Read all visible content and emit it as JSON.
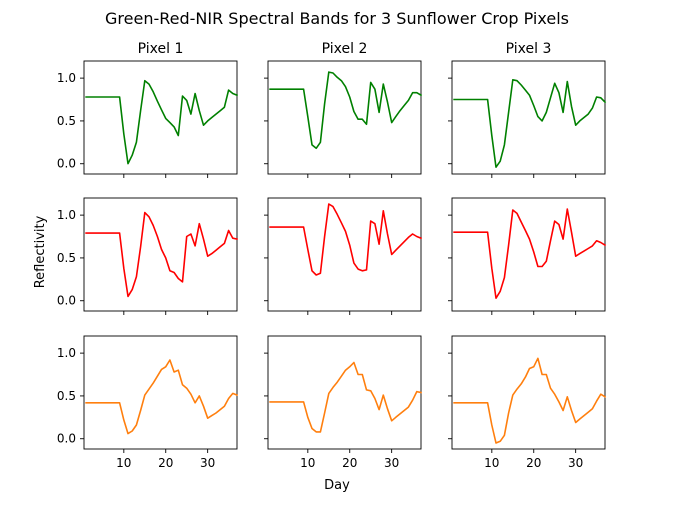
{
  "figure": {
    "title": "Green-Red-NIR Spectral Bands for 3 Sunflower Crop Pixels",
    "ylabel": "Reflectivity",
    "xlabel": "Day"
  },
  "colors": {
    "green": "#008000",
    "red": "#ff0000",
    "nir": "#ff7f0e"
  },
  "chart_data": {
    "type": "line",
    "title": "Green-Red-NIR Spectral Bands for 3 Sunflower Crop Pixels",
    "xlabel": "Day",
    "ylabel": "Reflectivity",
    "xlim": [
      0.5,
      37
    ],
    "ylim": [
      -0.12,
      1.2
    ],
    "xticks": [
      10,
      20,
      30
    ],
    "yticks": [
      0.0,
      0.5,
      1.0
    ],
    "ytick_labels": [
      "0.0",
      "0.5",
      "1.0"
    ],
    "columns": [
      "Pixel 1",
      "Pixel 2",
      "Pixel 3"
    ],
    "rows": [
      "green",
      "red",
      "nir"
    ],
    "x": [
      1,
      9,
      10,
      11,
      12,
      13,
      14,
      15,
      16,
      17,
      18,
      19,
      20,
      21,
      22,
      23,
      24,
      25,
      26,
      27,
      28,
      29,
      30,
      31,
      32,
      33,
      34,
      35,
      36,
      37
    ],
    "panels": [
      [
        {
          "row": "green",
          "column": "Pixel 1",
          "values": [
            0.78,
            0.78,
            0.35,
            0.0,
            0.1,
            0.25,
            0.62,
            0.97,
            0.93,
            0.84,
            0.73,
            0.63,
            0.53,
            0.48,
            0.43,
            0.33,
            0.79,
            0.74,
            0.58,
            0.82,
            0.62,
            0.45,
            0.5,
            0.54,
            0.58,
            0.62,
            0.66,
            0.86,
            0.82,
            0.8
          ]
        },
        {
          "row": "green",
          "column": "Pixel 2",
          "values": [
            0.87,
            0.87,
            0.55,
            0.22,
            0.18,
            0.25,
            0.7,
            1.07,
            1.06,
            1.01,
            0.97,
            0.9,
            0.78,
            0.61,
            0.52,
            0.52,
            0.46,
            0.95,
            0.87,
            0.6,
            0.93,
            0.72,
            0.48,
            0.55,
            0.62,
            0.68,
            0.74,
            0.83,
            0.83,
            0.8
          ]
        },
        {
          "row": "green",
          "column": "Pixel 3",
          "values": [
            0.75,
            0.75,
            0.33,
            -0.04,
            0.03,
            0.22,
            0.6,
            0.98,
            0.97,
            0.92,
            0.86,
            0.8,
            0.68,
            0.55,
            0.5,
            0.6,
            0.77,
            0.94,
            0.83,
            0.6,
            0.96,
            0.67,
            0.45,
            0.5,
            0.54,
            0.58,
            0.65,
            0.78,
            0.77,
            0.72
          ]
        }
      ],
      [
        {
          "row": "red",
          "column": "Pixel 1",
          "values": [
            0.79,
            0.79,
            0.38,
            0.05,
            0.13,
            0.28,
            0.63,
            1.03,
            0.98,
            0.88,
            0.75,
            0.6,
            0.5,
            0.35,
            0.33,
            0.26,
            0.22,
            0.75,
            0.78,
            0.64,
            0.9,
            0.72,
            0.52,
            0.55,
            0.59,
            0.63,
            0.67,
            0.82,
            0.73,
            0.72
          ]
        },
        {
          "row": "red",
          "column": "Pixel 2",
          "values": [
            0.86,
            0.86,
            0.6,
            0.35,
            0.3,
            0.32,
            0.75,
            1.13,
            1.1,
            1.01,
            0.91,
            0.81,
            0.65,
            0.44,
            0.37,
            0.35,
            0.36,
            0.93,
            0.9,
            0.66,
            1.05,
            0.78,
            0.54,
            0.59,
            0.64,
            0.69,
            0.74,
            0.78,
            0.75,
            0.73
          ]
        },
        {
          "row": "red",
          "column": "Pixel 3",
          "values": [
            0.8,
            0.8,
            0.38,
            0.03,
            0.11,
            0.27,
            0.65,
            1.06,
            1.02,
            0.92,
            0.82,
            0.72,
            0.57,
            0.4,
            0.4,
            0.46,
            0.7,
            0.93,
            0.89,
            0.72,
            1.07,
            0.8,
            0.52,
            0.55,
            0.58,
            0.61,
            0.64,
            0.7,
            0.68,
            0.65
          ]
        }
      ],
      [
        {
          "row": "nir",
          "column": "Pixel 1",
          "values": [
            0.42,
            0.42,
            0.22,
            0.06,
            0.09,
            0.16,
            0.33,
            0.51,
            0.58,
            0.65,
            0.73,
            0.81,
            0.84,
            0.92,
            0.78,
            0.8,
            0.63,
            0.59,
            0.52,
            0.42,
            0.5,
            0.38,
            0.24,
            0.27,
            0.3,
            0.34,
            0.38,
            0.47,
            0.53,
            0.51
          ]
        },
        {
          "row": "nir",
          "column": "Pixel 2",
          "values": [
            0.43,
            0.43,
            0.25,
            0.12,
            0.08,
            0.08,
            0.3,
            0.53,
            0.6,
            0.66,
            0.73,
            0.8,
            0.84,
            0.89,
            0.75,
            0.75,
            0.57,
            0.56,
            0.47,
            0.34,
            0.51,
            0.35,
            0.21,
            0.25,
            0.29,
            0.33,
            0.37,
            0.45,
            0.55,
            0.54
          ]
        },
        {
          "row": "nir",
          "column": "Pixel 3",
          "values": [
            0.42,
            0.42,
            0.16,
            -0.05,
            -0.03,
            0.04,
            0.3,
            0.51,
            0.58,
            0.64,
            0.72,
            0.82,
            0.84,
            0.94,
            0.75,
            0.75,
            0.59,
            0.52,
            0.43,
            0.33,
            0.49,
            0.33,
            0.19,
            0.23,
            0.27,
            0.31,
            0.35,
            0.44,
            0.52,
            0.49
          ]
        }
      ]
    ]
  }
}
